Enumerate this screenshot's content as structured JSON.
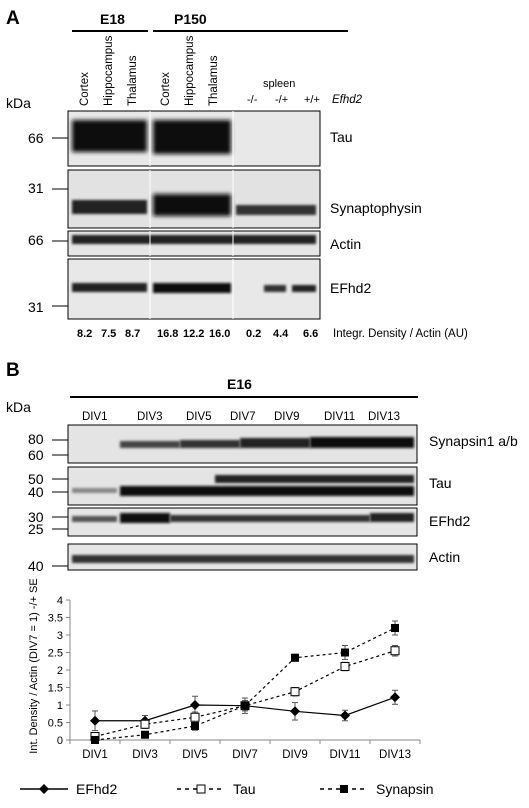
{
  "panel_a": {
    "label": "A",
    "group_labels": [
      "E18",
      "P150"
    ],
    "lane_labels": [
      "Cortex",
      "Hippocampus",
      "Thalamus",
      "Cortex",
      "Hippocampus",
      "Thalamus"
    ],
    "spleen_label": "spleen",
    "genotype_labels": [
      "-/-",
      "-/+",
      "+/+"
    ],
    "gene_label": "Efhd2",
    "kda_label": "kDa",
    "markers": [
      "66",
      "31",
      "66",
      "31"
    ],
    "blot_labels": [
      "Tau",
      "Synaptophysin",
      "Actin",
      "EFhd2"
    ],
    "density_values": [
      "8.2",
      "7.5",
      "8.7",
      "16.8",
      "12.2",
      "16.0",
      "0.2",
      "4.4",
      "6.6"
    ],
    "density_caption": "Integr. Density / Actin (AU)"
  },
  "panel_b": {
    "label": "B",
    "group_label": "E16",
    "kda_label": "kDa",
    "div_labels": [
      "DIV1",
      "DIV3",
      "DIV5",
      "DIV7",
      "DIV9",
      "DIV11",
      "DIV13"
    ],
    "markers": [
      "80",
      "60",
      "50",
      "40",
      "30",
      "25",
      "40"
    ],
    "blot_labels": [
      "Synapsin1 a/b",
      "Tau",
      "EFhd2",
      "Actin"
    ]
  },
  "chart_data": {
    "type": "line",
    "ylabel": "Int. Density / Actin (DIV7 = 1) -/+ SE",
    "xlabel": "",
    "categories": [
      "DIV1",
      "DIV3",
      "DIV5",
      "DIV7",
      "DIV9",
      "DIV11",
      "DIV13"
    ],
    "ylim": [
      0,
      4
    ],
    "yticks": [
      "0",
      "0.5",
      "1",
      "1.5",
      "2",
      "2.5",
      "3",
      "3.5",
      "4"
    ],
    "grid": false,
    "legend_position": "bottom",
    "series": [
      {
        "name": "EFhd2",
        "marker": "filled-diamond",
        "line": "solid",
        "values": [
          0.55,
          0.55,
          1.0,
          0.98,
          0.82,
          0.7,
          1.22
        ],
        "errors": [
          0.28,
          0.15,
          0.25,
          0.22,
          0.25,
          0.15,
          0.2
        ]
      },
      {
        "name": "Tau",
        "marker": "open-square",
        "line": "dashed",
        "values": [
          0.1,
          0.45,
          0.65,
          0.98,
          1.38,
          2.1,
          2.55
        ],
        "errors": [
          0.1,
          0.12,
          0.15,
          0.15,
          0.12,
          0.12,
          0.15
        ]
      },
      {
        "name": "Synapsin",
        "marker": "filled-square",
        "line": "dashed",
        "values": [
          0.0,
          0.15,
          0.4,
          0.98,
          2.35,
          2.5,
          3.2
        ],
        "errors": [
          0.05,
          0.08,
          0.12,
          0.1,
          0.1,
          0.2,
          0.2
        ]
      }
    ]
  },
  "colors": {
    "ink": "#000000",
    "band": "#1a1a1a",
    "blot_bg": "#e6e6e6"
  }
}
